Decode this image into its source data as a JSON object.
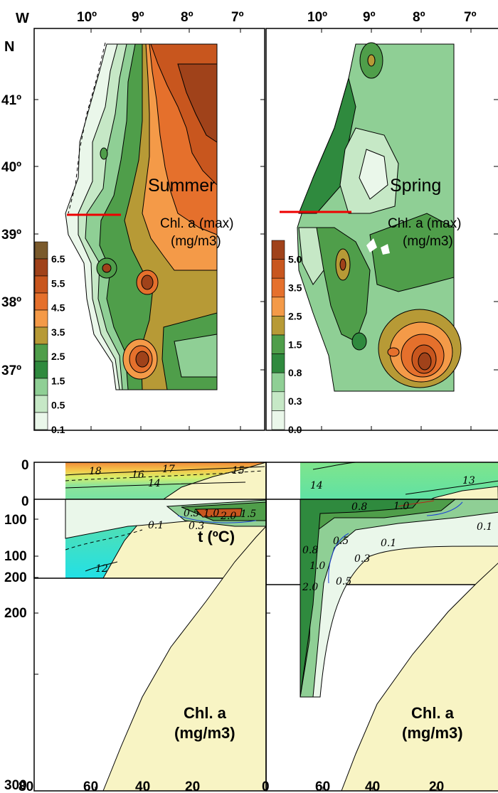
{
  "maps": {
    "lon_ticks": [
      "10º",
      "9º",
      "8º",
      "7º"
    ],
    "lat_ticks": [
      "41º",
      "40º",
      "39º",
      "38º",
      "37º"
    ],
    "corner_w": "W",
    "corner_n": "N",
    "summer": {
      "title": "Summer",
      "sub1": "Chl. a (max)",
      "sub2": "(mg/m3)"
    },
    "spring": {
      "title": "Spring",
      "sub1": "Chl. a (max)",
      "sub2": "(mg/m3)"
    },
    "legend_summer": {
      "labels": [
        "6.5",
        "5.5",
        "4.5",
        "3.5",
        "2.5",
        "1.5",
        "0.5",
        "0.1"
      ],
      "colors": [
        "#7a5a2c",
        "#a0421a",
        "#c8561e",
        "#e5702c",
        "#f49a48",
        "#b79a36",
        "#4f9e4a",
        "#2f8a3e",
        "#8fcf95",
        "#c6e8c6",
        "#eaf7ea"
      ]
    },
    "legend_spring": {
      "labels": [
        "5.0",
        "3.5",
        "2.5",
        "1.5",
        "0.8",
        "0.3",
        "0.0"
      ],
      "colors": [
        "#a0421a",
        "#c8561e",
        "#e5702c",
        "#f49a48",
        "#b79a36",
        "#4f9e4a",
        "#2f8a3e",
        "#8fcf95",
        "#c6e8c6",
        "#eaf7ea"
      ]
    }
  },
  "sections": {
    "depth_ticks": [
      "0",
      "100",
      "200"
    ],
    "depth_ticks_bottom": [
      "0",
      "100",
      "200",
      "300"
    ],
    "dist_ticks_left": [
      "80",
      "60",
      "40",
      "20",
      "0"
    ],
    "dist_ticks_right": [
      "60",
      "40",
      "20"
    ],
    "temp_label": "t (ºC)",
    "chl_label_1": "Chl. a",
    "chl_label_2": "(mg/m3)",
    "summer_temp_contours": [
      "18",
      "16",
      "17",
      "14",
      "15",
      "13",
      "12"
    ],
    "spring_temp_contours": [
      "14",
      "13",
      "13"
    ],
    "summer_chl_contours": [
      "0.5",
      "1.0",
      "2.0",
      "1.5",
      "0.1",
      "0.3"
    ],
    "spring_chl_contours": [
      "0.8",
      "1.0",
      "0.1",
      "0.5",
      "0.3",
      "0.1",
      "0.8",
      "1.0",
      "0.5",
      "2.0"
    ]
  }
}
